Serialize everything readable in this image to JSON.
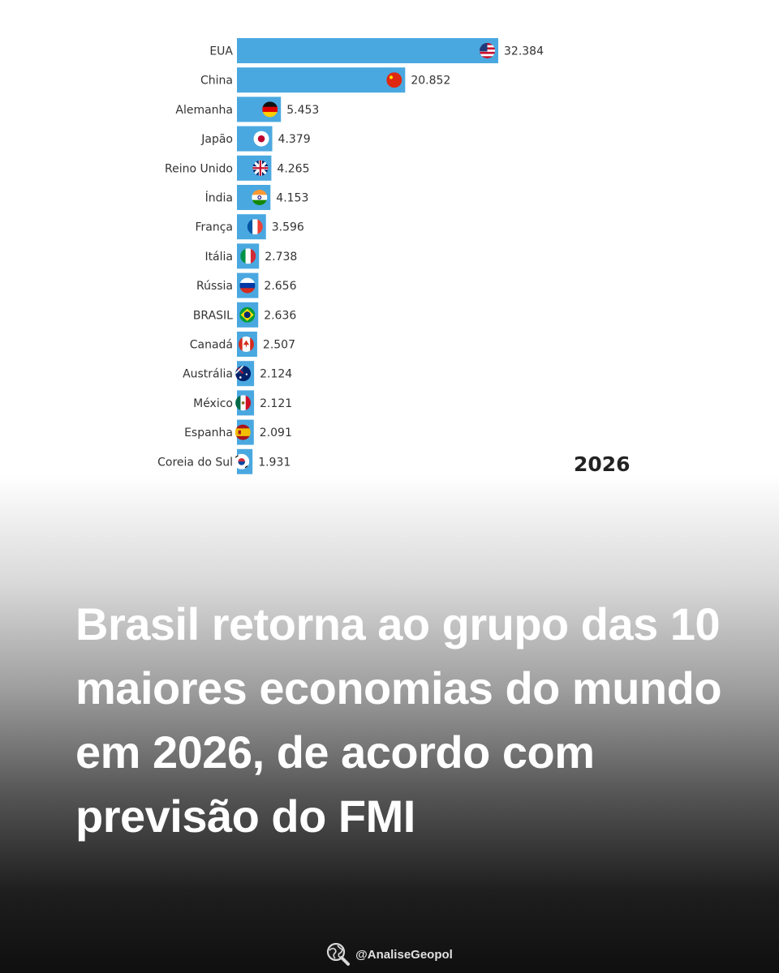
{
  "chart_data": {
    "type": "bar",
    "orientation": "horizontal",
    "categories": [
      "EUA",
      "China",
      "Alemanha",
      "Japão",
      "Reino Unido",
      "Índia",
      "França",
      "Itália",
      "Rússia",
      "BRASIL",
      "Canadá",
      "Austrália",
      "México",
      "Espanha",
      "Coreia do Sul"
    ],
    "values": [
      32.384,
      20.852,
      5.453,
      4.379,
      4.265,
      4.153,
      3.596,
      2.738,
      2.656,
      2.636,
      2.507,
      2.124,
      2.121,
      2.091,
      1.931
    ],
    "value_labels": [
      "32.384",
      "20.852",
      "5.453",
      "4.379",
      "4.265",
      "4.153",
      "3.596",
      "2.738",
      "2.656",
      "2.636",
      "2.507",
      "2.124",
      "2.121",
      "2.091",
      "1.931"
    ],
    "flags": [
      "us",
      "cn",
      "de",
      "jp",
      "gb",
      "in",
      "fr",
      "it",
      "ru",
      "br",
      "ca",
      "au",
      "mx",
      "es",
      "kr"
    ],
    "bar_color": "#4aa8e0",
    "annotation": "2026",
    "xlim": [
      0,
      32.384
    ]
  },
  "headline": "Brasil retorna ao grupo das 10 maiores economias do mundo em 2026, de acordo com previsão do FMI",
  "footer": {
    "handle": "@AnaliseGeopol",
    "icon": "globe-magnifier-icon"
  }
}
